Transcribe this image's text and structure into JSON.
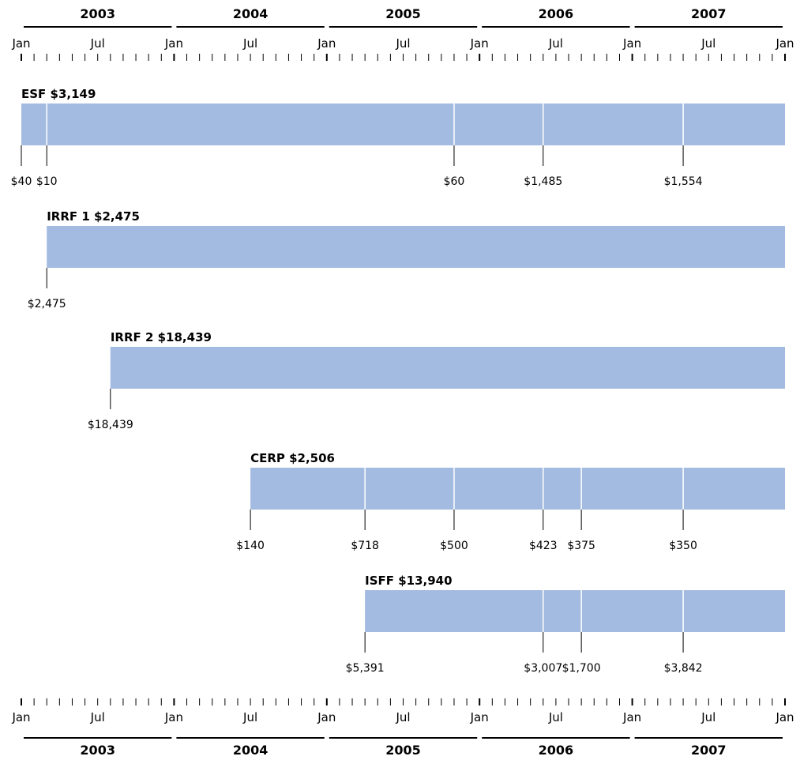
{
  "chart_data": {
    "type": "timeline",
    "x_range": [
      "2003-01",
      "2008-01"
    ],
    "years": [
      "2003",
      "2004",
      "2005",
      "2006",
      "2007"
    ],
    "month_ticks": [
      "Jan",
      "Jul",
      "Jan",
      "Jul",
      "Jan",
      "Jul",
      "Jan",
      "Jul",
      "Jan",
      "Jul",
      "Jan"
    ],
    "bar_color": "#a3bbe0",
    "funds": [
      {
        "label": "ESF $3,149",
        "start": "2003-01",
        "segments": [
          {
            "date": "2003-01",
            "amount": "$40"
          },
          {
            "date": "2003-03",
            "amount": "$10"
          },
          {
            "date": "2005-11",
            "amount": "$60"
          },
          {
            "date": "2006-06",
            "amount": "$1,485"
          },
          {
            "date": "2007-05",
            "amount": "$1,554"
          }
        ]
      },
      {
        "label": "IRRF 1 $2,475",
        "start": "2003-03",
        "segments": [
          {
            "date": "2003-03",
            "amount": "$2,475"
          }
        ]
      },
      {
        "label": "IRRF 2 $18,439",
        "start": "2003-08",
        "segments": [
          {
            "date": "2003-08",
            "amount": "$18,439"
          }
        ]
      },
      {
        "label": "CERP $2,506",
        "start": "2004-07",
        "segments": [
          {
            "date": "2004-07",
            "amount": "$140"
          },
          {
            "date": "2005-04",
            "amount": "$718"
          },
          {
            "date": "2005-11",
            "amount": "$500"
          },
          {
            "date": "2006-06",
            "amount": "$423"
          },
          {
            "date": "2006-09",
            "amount": "$375"
          },
          {
            "date": "2007-05",
            "amount": "$350"
          }
        ]
      },
      {
        "label": "ISFF $13,940",
        "start": "2005-04",
        "segments": [
          {
            "date": "2005-04",
            "amount": "$5,391"
          },
          {
            "date": "2006-06",
            "amount": "$3,007"
          },
          {
            "date": "2006-09",
            "amount": "$1,700"
          },
          {
            "date": "2007-05",
            "amount": "$3,842"
          }
        ]
      }
    ]
  }
}
